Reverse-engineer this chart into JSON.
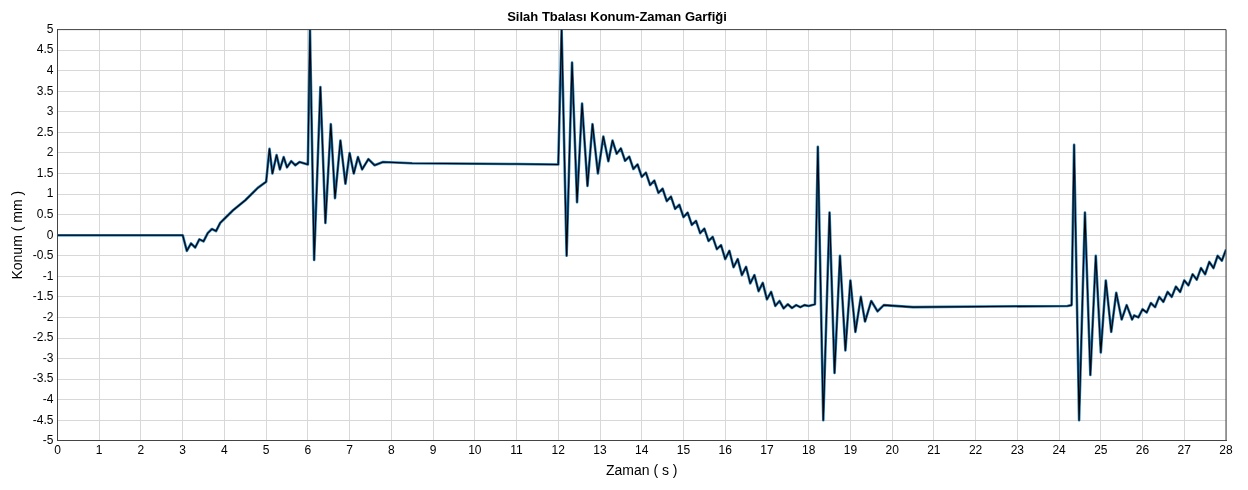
{
  "chart_data": {
    "type": "line",
    "title": "Silah Tbalası Konum-Zaman Garfiği",
    "xlabel": "Zaman ( s )",
    "ylabel": "Konum ( mm )",
    "x": [
      0,
      1,
      3,
      3.1,
      3.2,
      3.3,
      3.4,
      3.5,
      3.6,
      3.7,
      3.8,
      3.9,
      4,
      4.2,
      4.5,
      4.8,
      5,
      5.08,
      5.15,
      5.25,
      5.33,
      5.42,
      5.5,
      5.6,
      5.7,
      5.8,
      6,
      6.05,
      6.15,
      6.3,
      6.42,
      6.55,
      6.65,
      6.78,
      6.9,
      7,
      7.1,
      7.2,
      7.3,
      7.45,
      7.6,
      7.8,
      8.5,
      11,
      12,
      12.08,
      12.2,
      12.33,
      12.45,
      12.57,
      12.7,
      12.82,
      12.95,
      13.08,
      13.2,
      13.3,
      13.4,
      13.5,
      13.6,
      13.7,
      13.8,
      13.9,
      14,
      14.1,
      14.2,
      14.3,
      14.4,
      14.5,
      14.6,
      14.7,
      14.8,
      14.9,
      15,
      15.1,
      15.2,
      15.3,
      15.4,
      15.5,
      15.6,
      15.7,
      15.8,
      15.9,
      16,
      16.1,
      16.2,
      16.3,
      16.4,
      16.5,
      16.6,
      16.7,
      16.8,
      16.9,
      17,
      17.1,
      17.2,
      17.3,
      17.4,
      17.5,
      17.6,
      17.7,
      17.8,
      17.9,
      18,
      18.15,
      18.22,
      18.35,
      18.5,
      18.62,
      18.75,
      18.88,
      19,
      19.12,
      19.25,
      19.35,
      19.5,
      19.65,
      19.8,
      20.5,
      24.2,
      24.3,
      24.36,
      24.48,
      24.62,
      24.75,
      24.88,
      25,
      25.12,
      25.25,
      25.37,
      25.5,
      25.62,
      25.75,
      25.8,
      25.9,
      26,
      26.1,
      26.2,
      26.3,
      26.4,
      26.5,
      26.6,
      26.7,
      26.8,
      26.9,
      27,
      27.1,
      27.2,
      27.3,
      27.4,
      27.5,
      27.6,
      27.7,
      27.8,
      27.9,
      28
    ],
    "series": [
      {
        "color": "#1f77b4",
        "values": [
          0,
          0,
          0,
          -0.38,
          -0.2,
          -0.3,
          -0.1,
          -0.15,
          0.05,
          0.15,
          0.1,
          0.3,
          0.4,
          0.6,
          0.85,
          1.15,
          1.3,
          2.1,
          1.5,
          1.95,
          1.6,
          1.9,
          1.65,
          1.8,
          1.7,
          1.78,
          1.72,
          5,
          -0.6,
          3.6,
          0.3,
          2.7,
          0.9,
          2.3,
          1.25,
          2,
          1.5,
          1.9,
          1.6,
          1.85,
          1.7,
          1.78,
          1.75,
          1.73,
          1.72,
          5,
          -0.5,
          4.2,
          0.8,
          3.2,
          1.2,
          2.7,
          1.5,
          2.4,
          1.8,
          2.3,
          1.98,
          2.11,
          1.81,
          1.91,
          1.61,
          1.72,
          1.42,
          1.52,
          1.22,
          1.33,
          1.03,
          1.13,
          0.83,
          0.94,
          0.64,
          0.74,
          0.44,
          0.55,
          0.25,
          0.35,
          0.05,
          0.16,
          -0.14,
          -0.04,
          -0.34,
          -0.24,
          -0.58,
          -0.38,
          -0.78,
          -0.58,
          -0.97,
          -0.77,
          -1.17,
          -0.97,
          -1.36,
          -1.16,
          -1.56,
          -1.38,
          -1.72,
          -1.6,
          -1.78,
          -1.68,
          -1.77,
          -1.7,
          -1.75,
          -1.7,
          -1.72,
          -1.68,
          2.15,
          -4.5,
          0.55,
          -3.35,
          -0.5,
          -2.8,
          -1.1,
          -2.35,
          -1.5,
          -2.1,
          -1.6,
          -1.85,
          -1.7,
          -1.75,
          -1.72,
          -1.7,
          2.2,
          -4.5,
          0.55,
          -3.4,
          -0.5,
          -2.85,
          -1.1,
          -2.35,
          -1.4,
          -2.05,
          -1.7,
          -2.05,
          -1.95,
          -2,
          -1.8,
          -1.88,
          -1.65,
          -1.75,
          -1.5,
          -1.62,
          -1.38,
          -1.5,
          -1.25,
          -1.38,
          -1.1,
          -1.22,
          -0.95,
          -1.08,
          -0.8,
          -0.95,
          -0.65,
          -0.8,
          -0.5,
          -0.62,
          -0.35
        ]
      },
      {
        "color": "#000000",
        "values": [
          0,
          0,
          0,
          -0.38,
          -0.2,
          -0.3,
          -0.1,
          -0.15,
          0.05,
          0.15,
          0.1,
          0.3,
          0.4,
          0.6,
          0.85,
          1.15,
          1.3,
          2.1,
          1.5,
          1.95,
          1.6,
          1.9,
          1.65,
          1.8,
          1.7,
          1.78,
          1.72,
          5,
          -0.6,
          3.6,
          0.3,
          2.7,
          0.9,
          2.3,
          1.25,
          2,
          1.5,
          1.9,
          1.6,
          1.85,
          1.7,
          1.78,
          1.75,
          1.73,
          1.72,
          5,
          -0.5,
          4.2,
          0.8,
          3.2,
          1.2,
          2.7,
          1.5,
          2.4,
          1.8,
          2.3,
          1.98,
          2.11,
          1.81,
          1.91,
          1.61,
          1.72,
          1.42,
          1.52,
          1.22,
          1.33,
          1.03,
          1.13,
          0.83,
          0.94,
          0.64,
          0.74,
          0.44,
          0.55,
          0.25,
          0.35,
          0.05,
          0.16,
          -0.14,
          -0.04,
          -0.34,
          -0.24,
          -0.58,
          -0.38,
          -0.78,
          -0.58,
          -0.97,
          -0.77,
          -1.17,
          -0.97,
          -1.36,
          -1.16,
          -1.56,
          -1.38,
          -1.72,
          -1.6,
          -1.78,
          -1.68,
          -1.77,
          -1.7,
          -1.75,
          -1.7,
          -1.72,
          -1.68,
          2.15,
          -4.5,
          0.55,
          -3.35,
          -0.5,
          -2.8,
          -1.1,
          -2.35,
          -1.5,
          -2.1,
          -1.6,
          -1.85,
          -1.7,
          -1.75,
          -1.72,
          -1.7,
          2.2,
          -4.5,
          0.55,
          -3.4,
          -0.5,
          -2.85,
          -1.1,
          -2.35,
          -1.4,
          -2.05,
          -1.7,
          -2.05,
          -1.95,
          -2,
          -1.8,
          -1.88,
          -1.65,
          -1.75,
          -1.5,
          -1.62,
          -1.38,
          -1.5,
          -1.25,
          -1.38,
          -1.1,
          -1.22,
          -0.95,
          -1.08,
          -0.8,
          -0.95,
          -0.65,
          -0.8,
          -0.5,
          -0.62,
          -0.35
        ]
      }
    ],
    "xlim": [
      0,
      28
    ],
    "xticks": [
      0,
      1,
      2,
      3,
      4,
      5,
      6,
      7,
      8,
      9,
      10,
      11,
      12,
      13,
      14,
      15,
      16,
      17,
      18,
      19,
      20,
      21,
      22,
      23,
      24,
      25,
      26,
      27,
      28
    ],
    "ylim": [
      -5,
      5
    ],
    "yticks": [
      -5,
      -4.5,
      -4,
      -3.5,
      -3,
      -2.5,
      -2,
      -1.5,
      -1,
      -0.5,
      0,
      0.5,
      1,
      1.5,
      2,
      2.5,
      3,
      3.5,
      4,
      4.5,
      5
    ],
    "grid": true,
    "marker": "none",
    "line_style": "solid"
  }
}
